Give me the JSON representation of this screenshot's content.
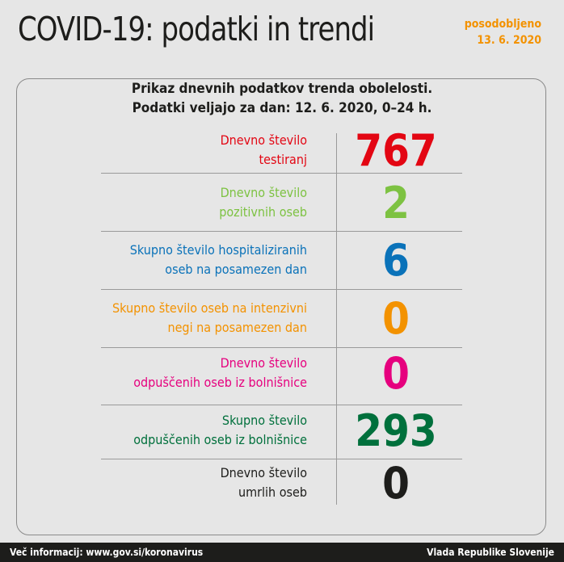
{
  "header": {
    "title": "COVID-19: podatki in trendi",
    "updated_label": "posodobljeno",
    "updated_date": "13. 6. 2020"
  },
  "subtitle": {
    "line1": "Prikaz dnevnih podatkov trenda obolelosti.",
    "line2": "Podatki veljajo za dan: 12. 6. 2020, 0–24 h."
  },
  "rows": [
    {
      "line1": "Dnevno število",
      "line2": "testiranj",
      "value": "767",
      "color": "#e30613"
    },
    {
      "line1": "Dnevno število",
      "line2": "pozitivnih oseb",
      "value": "2",
      "color": "#7dc242"
    },
    {
      "line1": "Skupno število hospitaliziranih",
      "line2": "oseb na posamezen dan",
      "value": "6",
      "color": "#0a72b9"
    },
    {
      "line1": "Skupno število oseb na intenzivni",
      "line2": "negi na posamezen dan",
      "value": "0",
      "color": "#f39200"
    },
    {
      "line1": "Dnevno število",
      "line2": "odpuščenih oseb iz bolnišnice",
      "value": "0",
      "color": "#e6007e"
    },
    {
      "line1": "Skupno število",
      "line2": "odpuščenih oseb iz bolnišnice",
      "value": "293",
      "color": "#00703c"
    },
    {
      "line1": "Dnevno število",
      "line2": "umrlih oseb",
      "value": "0",
      "color": "#1d1d1b"
    }
  ],
  "footer": {
    "left": "Več informacij: www.gov.si/koronavirus",
    "right": "Vlada Republike Slovenije"
  }
}
